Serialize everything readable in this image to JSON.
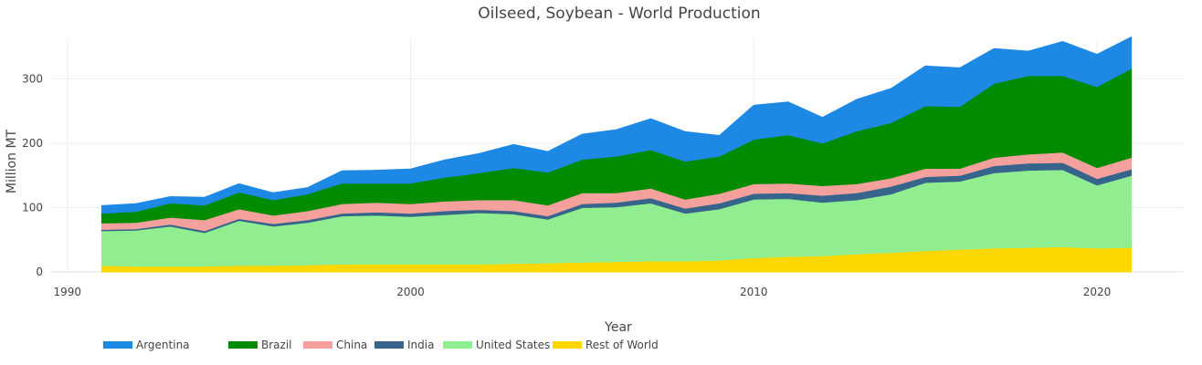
{
  "chart_data": {
    "type": "area",
    "stacked": true,
    "title": "Oilseed, Soybean - World Production",
    "xlabel": "Year",
    "ylabel": "Million MT",
    "xlim": [
      1989.5,
      2022.5
    ],
    "ylim": [
      0,
      380
    ],
    "x_ticks": [
      1990,
      2000,
      2010,
      2020
    ],
    "y_ticks": [
      0,
      100,
      200,
      300
    ],
    "grid": true,
    "legend_position": "bottom-left",
    "x": [
      1991,
      1992,
      1993,
      1994,
      1995,
      1996,
      1997,
      1998,
      1999,
      2000,
      2001,
      2002,
      2003,
      2004,
      2005,
      2006,
      2007,
      2008,
      2009,
      2010,
      2011,
      2012,
      2013,
      2014,
      2015,
      2016,
      2017,
      2018,
      2019,
      2020,
      2021
    ],
    "series": [
      {
        "name": "Rest of World",
        "color": "#ffd700",
        "values": [
          10,
          9,
          9,
          9,
          10,
          10,
          11,
          12,
          12,
          12,
          12,
          12,
          13,
          14,
          15,
          16,
          17,
          17,
          18,
          22,
          24,
          25,
          28,
          30,
          33,
          35,
          37,
          38,
          39,
          37,
          38
        ]
      },
      {
        "name": "United States",
        "color": "#90ee90",
        "values": [
          54,
          56,
          62,
          52,
          70,
          61,
          66,
          75,
          76,
          74,
          77,
          80,
          77,
          68,
          85,
          85,
          90,
          74,
          80,
          91,
          90,
          83,
          84,
          91,
          106,
          106,
          117,
          120,
          120,
          98,
          112
        ]
      },
      {
        "name": "India",
        "color": "#36648b",
        "values": [
          2,
          2,
          3,
          3,
          3,
          4,
          4,
          4,
          5,
          5,
          6,
          5,
          5,
          5,
          6,
          7,
          8,
          8,
          9,
          9,
          9,
          11,
          11,
          12,
          9,
          9,
          11,
          11,
          11,
          10,
          10
        ]
      },
      {
        "name": "China",
        "color": "#f4a09c",
        "values": [
          10,
          10,
          11,
          17,
          15,
          13,
          14,
          15,
          15,
          15,
          15,
          15,
          17,
          17,
          17,
          15,
          15,
          14,
          15,
          15,
          15,
          15,
          14,
          13,
          13,
          11,
          13,
          14,
          16,
          17,
          18
        ]
      },
      {
        "name": "Brazil",
        "color": "#008b00",
        "values": [
          15,
          17,
          22,
          23,
          26,
          24,
          26,
          32,
          30,
          32,
          37,
          42,
          50,
          51,
          52,
          57,
          60,
          59,
          58,
          69,
          75,
          66,
          82,
          86,
          97,
          96,
          115,
          122,
          119,
          126,
          138
        ]
      },
      {
        "name": "Argentina",
        "color": "#1e88e5",
        "values": [
          12,
          12,
          10,
          12,
          13,
          11,
          10,
          19,
          20,
          22,
          27,
          30,
          36,
          32,
          39,
          41,
          48,
          46,
          32,
          53,
          51,
          40,
          49,
          53,
          62,
          60,
          54,
          38,
          53,
          50,
          49
        ]
      }
    ],
    "legend_order": [
      "Argentina",
      "Brazil",
      "China",
      "India",
      "United States",
      "Rest of World"
    ]
  }
}
